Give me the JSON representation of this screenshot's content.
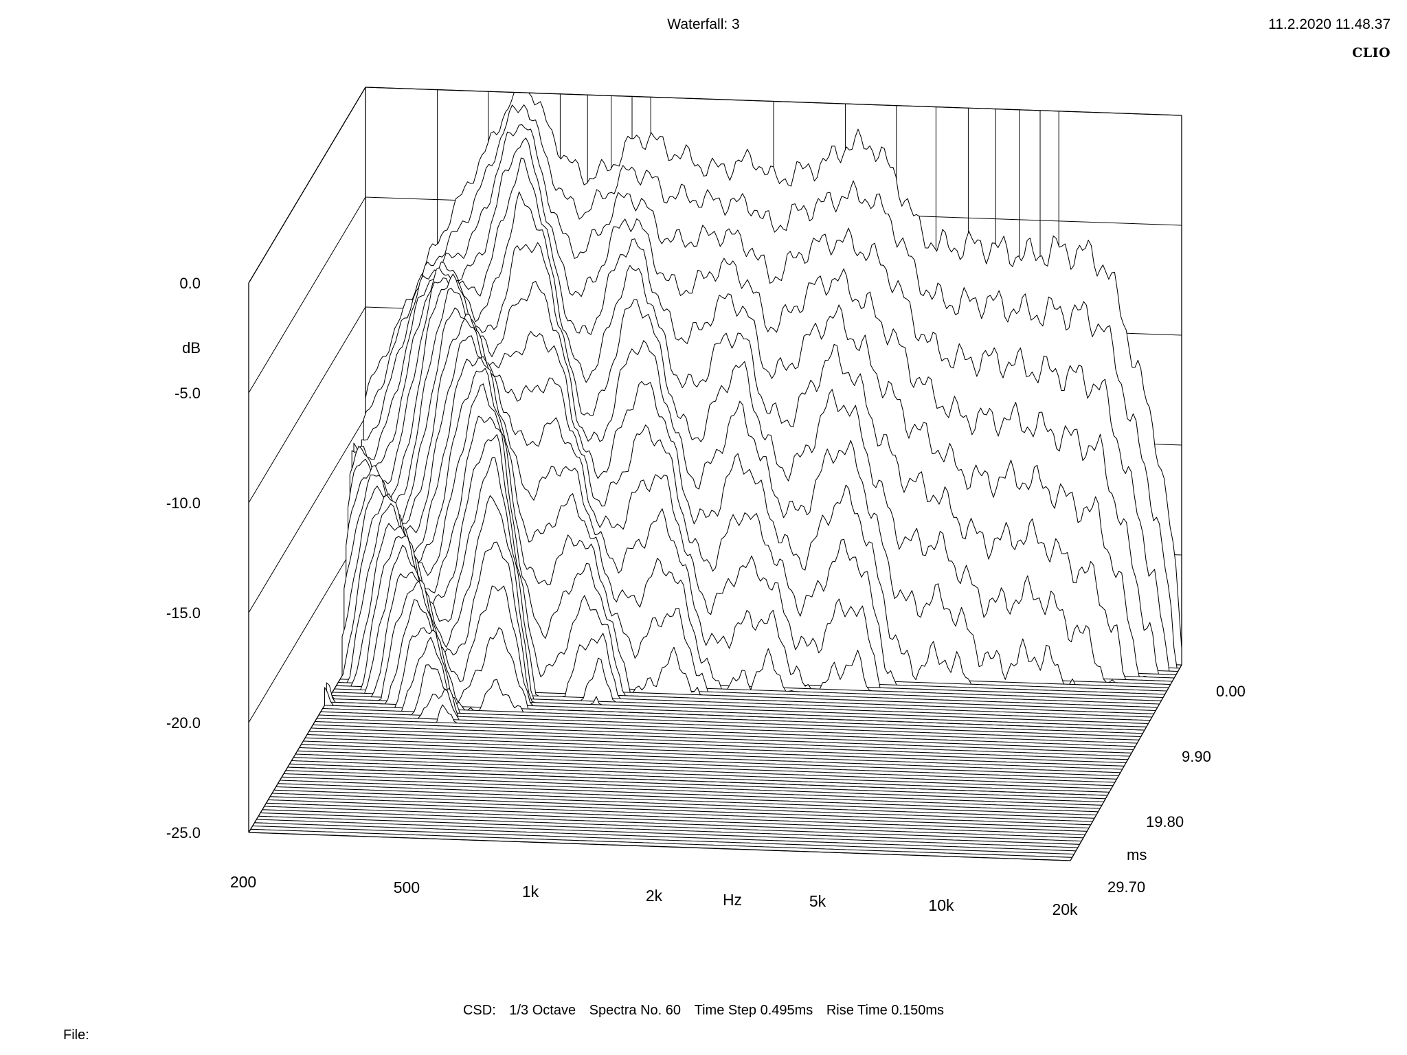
{
  "header": {
    "title": "Waterfall: 3",
    "datetime": "11.2.2020 11.48.37",
    "brand": "CLIO"
  },
  "footer": {
    "csd": "CSD:",
    "smoothing": "1/3 Octave",
    "spectra": "Spectra No. 60",
    "time_step": "Time Step 0.495ms",
    "rise_time": "Rise Time 0.150ms",
    "file_label": "File:"
  },
  "chart_data": {
    "type": "waterfall",
    "title": "Waterfall: 3",
    "x_axis": {
      "label": "Hz",
      "scale": "log",
      "range": [
        200,
        20000
      ],
      "ticks": [
        200,
        500,
        1000,
        2000,
        5000,
        10000,
        20000
      ],
      "tick_labels": [
        "200",
        "500",
        "1k",
        "2k",
        "5k",
        "10k",
        "20k"
      ]
    },
    "y_axis": {
      "label": "dB",
      "range": [
        -25.0,
        0.0
      ],
      "ticks": [
        0.0,
        -5.0,
        -10.0,
        -15.0,
        -20.0,
        -25.0
      ],
      "tick_labels": [
        "0.0",
        "-5.0",
        "-10.0",
        "-15.0",
        "-20.0",
        "-25.0"
      ]
    },
    "z_axis": {
      "label": "ms",
      "range": [
        0.0,
        29.7
      ],
      "ticks": [
        0.0,
        9.9,
        19.8,
        29.7
      ],
      "tick_labels": [
        "0.00",
        "9.90",
        "19.80",
        "29.70"
      ]
    },
    "spectra_count": 60,
    "time_step_ms": 0.495,
    "rise_time_ms": 0.15,
    "smoothing": "1/3 Octave",
    "grid": true,
    "line_color": "#000000",
    "first_slice": {
      "description_freq_hz": [
        200,
        280,
        350,
        400,
        450,
        500,
        560,
        620,
        700,
        800,
        900,
        1000,
        1100,
        1200,
        1400,
        1600,
        1800,
        2000,
        2300,
        2700,
        3000,
        3500,
        4000,
        4500,
        5000,
        5700,
        6500,
        7500,
        8500,
        10000,
        11500,
        13000,
        14500,
        16000,
        17500,
        18500,
        20000
      ],
      "level_db": [
        -14.0,
        -8.0,
        -4.5,
        -2.5,
        -0.5,
        0.5,
        -1.5,
        -3.0,
        -3.8,
        -3.2,
        -2.0,
        -1.8,
        -2.4,
        -2.6,
        -3.2,
        -3.0,
        -2.6,
        -3.6,
        -3.2,
        -2.7,
        -1.9,
        -1.8,
        -3.3,
        -5.5,
        -6.3,
        -6.3,
        -6.2,
        -6.5,
        -6.6,
        -6.3,
        -6.4,
        -6.9,
        -9.5,
        -12.5,
        -15.0,
        -18.0,
        -23.5
      ]
    },
    "decay": {
      "db_per_ms": 2.4,
      "floor_db": -25.0
    }
  }
}
